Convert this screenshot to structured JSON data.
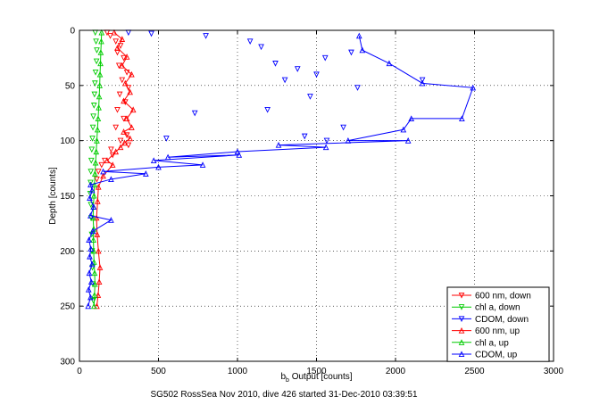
{
  "chart_data": {
    "type": "scatter",
    "xlabel_main": "b",
    "xlabel_sub": "b",
    "xlabel_rest": " Output [counts]",
    "ylabel": "Depth [counts]",
    "caption": "SG502 RossSea Nov 2010, dive 426 started 31-Dec-2010 03:39:51",
    "xlim": [
      0,
      3000
    ],
    "ylim": [
      0,
      300
    ],
    "y_reversed": true,
    "grid": true,
    "legend_position": "bottom-right",
    "x_ticks": [
      0,
      500,
      1000,
      1500,
      2000,
      2500,
      3000
    ],
    "y_ticks": [
      0,
      50,
      100,
      150,
      200,
      250,
      300
    ],
    "series": [
      {
        "name": "600 nm, down",
        "color": "#ff0000",
        "marker": "triangle-down",
        "line": false,
        "points": [
          [
            175,
            2
          ],
          [
            195,
            5
          ],
          [
            230,
            10
          ],
          [
            260,
            14
          ],
          [
            240,
            20
          ],
          [
            280,
            25
          ],
          [
            250,
            32
          ],
          [
            300,
            38
          ],
          [
            270,
            45
          ],
          [
            310,
            52
          ],
          [
            255,
            58
          ],
          [
            290,
            65
          ],
          [
            240,
            72
          ],
          [
            280,
            80
          ],
          [
            230,
            88
          ],
          [
            300,
            95
          ],
          [
            260,
            100
          ],
          [
            310,
            104
          ],
          [
            200,
            108
          ],
          [
            210,
            113
          ],
          [
            160,
            118
          ],
          [
            140,
            122
          ],
          [
            120,
            128
          ],
          [
            110,
            135
          ]
        ]
      },
      {
        "name": "chl a, down",
        "color": "#00cc00",
        "marker": "triangle-down",
        "line": false,
        "points": [
          [
            100,
            2
          ],
          [
            105,
            10
          ],
          [
            110,
            18
          ],
          [
            108,
            28
          ],
          [
            102,
            38
          ],
          [
            98,
            48
          ],
          [
            95,
            58
          ],
          [
            92,
            68
          ],
          [
            88,
            78
          ],
          [
            85,
            88
          ],
          [
            82,
            98
          ],
          [
            78,
            108
          ],
          [
            75,
            118
          ],
          [
            72,
            128
          ],
          [
            70,
            138
          ],
          [
            68,
            148
          ],
          [
            72,
            158
          ],
          [
            75,
            170
          ],
          [
            78,
            185
          ],
          [
            80,
            200
          ],
          [
            82,
            215
          ],
          [
            85,
            230
          ],
          [
            88,
            245
          ]
        ]
      },
      {
        "name": "CDOM, down",
        "color": "#0000ff",
        "marker": "triangle-down",
        "line": false,
        "points": [
          [
            310,
            2
          ],
          [
            455,
            3
          ],
          [
            800,
            5
          ],
          [
            1080,
            10
          ],
          [
            1150,
            15
          ],
          [
            1720,
            20
          ],
          [
            1555,
            25
          ],
          [
            1240,
            30
          ],
          [
            1380,
            35
          ],
          [
            1500,
            40
          ],
          [
            1300,
            45
          ],
          [
            2170,
            45
          ],
          [
            1760,
            52
          ],
          [
            1460,
            60
          ],
          [
            1190,
            72
          ],
          [
            730,
            75
          ],
          [
            1670,
            88
          ],
          [
            1425,
            96
          ],
          [
            1565,
            100
          ],
          [
            550,
            98
          ]
        ]
      },
      {
        "name": "600 nm, up",
        "color": "#ff0000",
        "marker": "triangle-up",
        "line": true,
        "points": [
          [
            110,
            250
          ],
          [
            118,
            240
          ],
          [
            125,
            228
          ],
          [
            130,
            215
          ],
          [
            120,
            200
          ],
          [
            112,
            185
          ],
          [
            108,
            170
          ],
          [
            115,
            155
          ],
          [
            120,
            142
          ],
          [
            150,
            132
          ],
          [
            210,
            122
          ],
          [
            175,
            118
          ],
          [
            230,
            110
          ],
          [
            260,
            106
          ],
          [
            285,
            102
          ],
          [
            320,
            98
          ],
          [
            280,
            92
          ],
          [
            330,
            88
          ],
          [
            300,
            80
          ],
          [
            340,
            72
          ],
          [
            280,
            64
          ],
          [
            320,
            56
          ],
          [
            290,
            48
          ],
          [
            330,
            40
          ],
          [
            270,
            32
          ],
          [
            300,
            24
          ],
          [
            240,
            16
          ],
          [
            270,
            8
          ],
          [
            220,
            2
          ]
        ]
      },
      {
        "name": "chl a, up",
        "color": "#00cc00",
        "marker": "triangle-up",
        "line": true,
        "points": [
          [
            92,
            250
          ],
          [
            95,
            240
          ],
          [
            98,
            230
          ],
          [
            96,
            220
          ],
          [
            92,
            210
          ],
          [
            90,
            200
          ],
          [
            88,
            190
          ],
          [
            90,
            180
          ],
          [
            86,
            170
          ],
          [
            88,
            160
          ],
          [
            92,
            150
          ],
          [
            95,
            140
          ],
          [
            98,
            130
          ],
          [
            102,
            120
          ],
          [
            106,
            110
          ],
          [
            110,
            100
          ],
          [
            114,
            90
          ],
          [
            118,
            80
          ],
          [
            122,
            70
          ],
          [
            125,
            60
          ],
          [
            128,
            50
          ],
          [
            130,
            40
          ],
          [
            133,
            30
          ],
          [
            135,
            20
          ],
          [
            138,
            10
          ],
          [
            140,
            2
          ]
        ]
      },
      {
        "name": "CDOM, up",
        "color": "#0000ff",
        "marker": "triangle-up",
        "line": true,
        "points": [
          [
            55,
            250
          ],
          [
            70,
            242
          ],
          [
            58,
            235
          ],
          [
            75,
            228
          ],
          [
            62,
            220
          ],
          [
            80,
            212
          ],
          [
            65,
            205
          ],
          [
            72,
            198
          ],
          [
            60,
            190
          ],
          [
            85,
            182
          ],
          [
            200,
            172
          ],
          [
            70,
            168
          ],
          [
            90,
            160
          ],
          [
            65,
            152
          ],
          [
            80,
            145
          ],
          [
            70,
            140
          ],
          [
            200,
            135
          ],
          [
            420,
            130
          ],
          [
            150,
            128
          ],
          [
            500,
            124
          ],
          [
            780,
            122
          ],
          [
            470,
            118
          ],
          [
            1010,
            113
          ],
          [
            560,
            115
          ],
          [
            1000,
            110
          ],
          [
            1560,
            106
          ],
          [
            1260,
            104
          ],
          [
            2080,
            100
          ],
          [
            1700,
            100
          ],
          [
            2050,
            90
          ],
          [
            2100,
            80
          ],
          [
            2420,
            80
          ],
          [
            2490,
            52
          ],
          [
            2170,
            48
          ],
          [
            1960,
            30
          ],
          [
            1790,
            18
          ],
          [
            1770,
            5
          ]
        ]
      }
    ]
  }
}
